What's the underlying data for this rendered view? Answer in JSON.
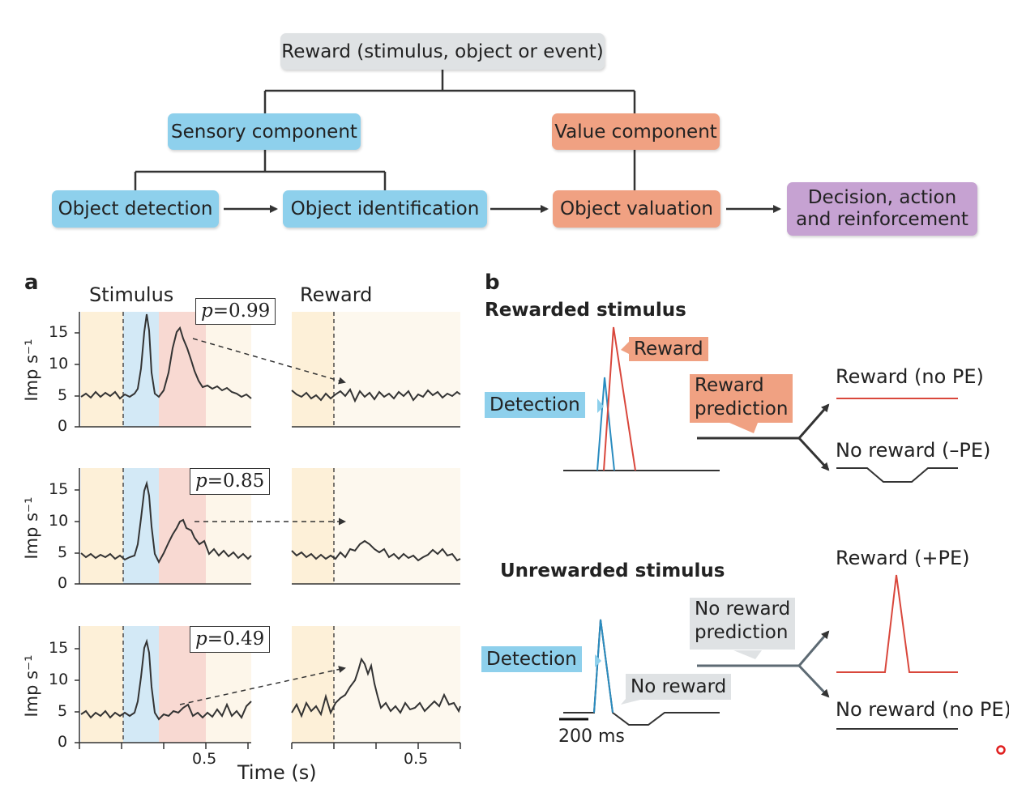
{
  "flow": {
    "root": "Reward (stimulus, object or event)",
    "sensory": "Sensory component",
    "value": "Value component",
    "detection": "Object detection",
    "identification": "Object identification",
    "valuation": "Object valuation",
    "decision_line1": "Decision, action",
    "decision_line2": "and reinforcement"
  },
  "colors": {
    "sensory": "#8ed0ec",
    "value": "#f0a182",
    "decision": "#c6a2d2",
    "root": "#dfe2e4"
  },
  "panel_a": {
    "letter": "a",
    "col_stimulus": "Stimulus",
    "col_reward": "Reward",
    "ylabel": "Imp s⁻¹",
    "yticks": [
      "15",
      "10",
      "5",
      "0"
    ],
    "xtick": "0.5",
    "xlabel": "Time (s)",
    "rows": [
      {
        "p_label": "p",
        "p_value": "=0.99"
      },
      {
        "p_label": "p",
        "p_value": "=0.85"
      },
      {
        "p_label": "p",
        "p_value": "=0.49"
      }
    ]
  },
  "panel_b": {
    "letter": "b",
    "rewarded_title": "Rewarded stimulus",
    "unrewarded_title": "Unrewarded stimulus",
    "reward_callout": "Reward",
    "detection_callout": "Detection",
    "reward_prediction_line1": "Reward",
    "reward_prediction_line2": "prediction",
    "no_reward_prediction_line1": "No reward",
    "no_reward_prediction_line2": "prediction",
    "no_reward_callout": "No reward",
    "scale_bar": "200 ms",
    "out_reward_no_pe": "Reward (no PE)",
    "out_no_reward_neg_pe": "No reward (–PE)",
    "out_reward_pos_pe": "Reward (+PE)",
    "out_no_reward_no_pe": "No reward (no PE)"
  }
}
